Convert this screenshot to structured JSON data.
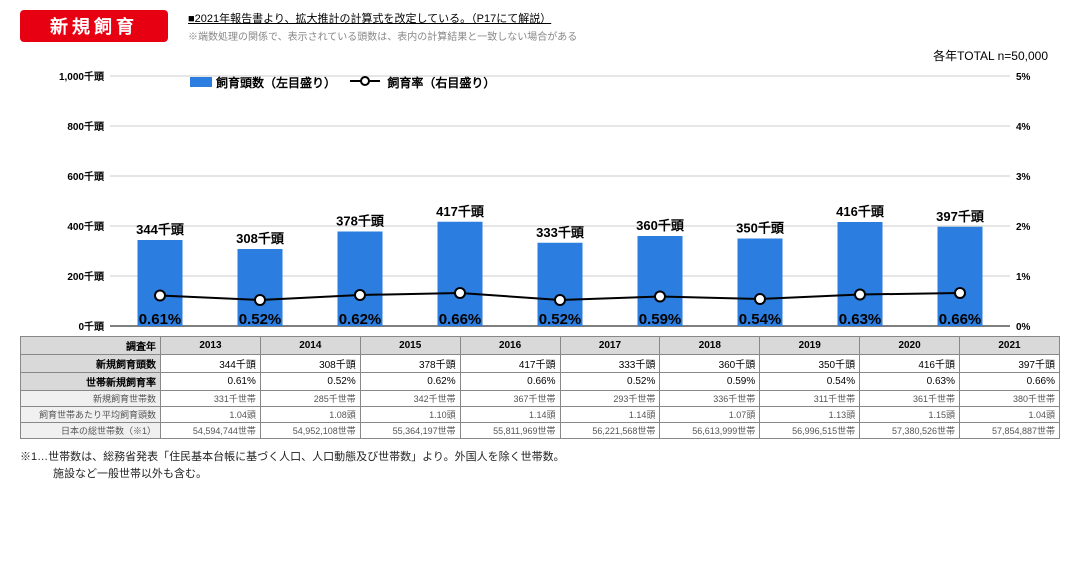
{
  "title": "新規飼育",
  "header_note1": "■2021年報告書より、拡大推計の計算式を改定している。（P17にて解説）",
  "header_note2": "※端数処理の関係で、表示されている頭数は、表内の計算結果と一致しない場合がある",
  "top_right": "各年TOTAL n=50,000",
  "legend": {
    "bar": "飼育頭数（左目盛り）",
    "line": "飼育率（右目盛り）"
  },
  "chart": {
    "type": "bar+line",
    "categories": [
      "2013",
      "2014",
      "2015",
      "2016",
      "2017",
      "2018",
      "2019",
      "2020",
      "2021"
    ],
    "bar_values": [
      344,
      308,
      378,
      417,
      333,
      360,
      350,
      416,
      397
    ],
    "bar_labels": [
      "344千頭",
      "308千頭",
      "378千頭",
      "417千頭",
      "333千頭",
      "360千頭",
      "350千頭",
      "416千頭",
      "397千頭"
    ],
    "line_values": [
      0.61,
      0.52,
      0.62,
      0.66,
      0.52,
      0.59,
      0.54,
      0.63,
      0.66
    ],
    "line_labels": [
      "0.61%",
      "0.52%",
      "0.62%",
      "0.66%",
      "0.52%",
      "0.59%",
      "0.54%",
      "0.63%",
      "0.66%"
    ],
    "left_axis": {
      "min": 0,
      "max": 1000,
      "step": 200,
      "unit": "千頭",
      "ticks": [
        "0千頭",
        "200千頭",
        "400千頭",
        "600千頭",
        "800千頭",
        "1,000千頭"
      ]
    },
    "right_axis": {
      "min": 0,
      "max": 5,
      "step": 1,
      "unit": "%",
      "ticks": [
        "0%",
        "1%",
        "2%",
        "3%",
        "4%",
        "5%"
      ]
    },
    "bar_color": "#2b7de0",
    "line_color": "#000000",
    "marker_fill": "#ffffff",
    "grid_color": "#cccccc",
    "background": "#ffffff",
    "bar_width": 0.45
  },
  "table": {
    "header": "調査年",
    "years": [
      "2013",
      "2014",
      "2015",
      "2016",
      "2017",
      "2018",
      "2019",
      "2020",
      "2021"
    ],
    "rows": [
      {
        "label": "新規飼育頭数",
        "main": true,
        "cells": [
          "344千頭",
          "308千頭",
          "378千頭",
          "417千頭",
          "333千頭",
          "360千頭",
          "350千頭",
          "416千頭",
          "397千頭"
        ]
      },
      {
        "label": "世帯新規飼育率",
        "main": true,
        "cells": [
          "0.61%",
          "0.52%",
          "0.62%",
          "0.66%",
          "0.52%",
          "0.59%",
          "0.54%",
          "0.63%",
          "0.66%"
        ]
      },
      {
        "label": "新規飼育世帯数",
        "main": false,
        "cells": [
          "331千世帯",
          "285千世帯",
          "342千世帯",
          "367千世帯",
          "293千世帯",
          "336千世帯",
          "311千世帯",
          "361千世帯",
          "380千世帯"
        ]
      },
      {
        "label": "飼育世帯あたり平均飼育頭数",
        "main": false,
        "cells": [
          "1.04頭",
          "1.08頭",
          "1.10頭",
          "1.14頭",
          "1.14頭",
          "1.07頭",
          "1.13頭",
          "1.15頭",
          "1.04頭"
        ]
      },
      {
        "label": "日本の総世帯数（※1）",
        "main": false,
        "cells": [
          "54,594,744世帯",
          "54,952,108世帯",
          "55,364,197世帯",
          "55,811,969世帯",
          "56,221,568世帯",
          "56,613,999世帯",
          "56,996,515世帯",
          "57,380,526世帯",
          "57,854,887世帯"
        ]
      }
    ]
  },
  "footnote1": "※1…世帯数は、総務省発表「住民基本台帳に基づく人口、人口動態及び世帯数」より。外国人を除く世帯数。",
  "footnote2": "　　　施設など一般世帯以外も含む。"
}
